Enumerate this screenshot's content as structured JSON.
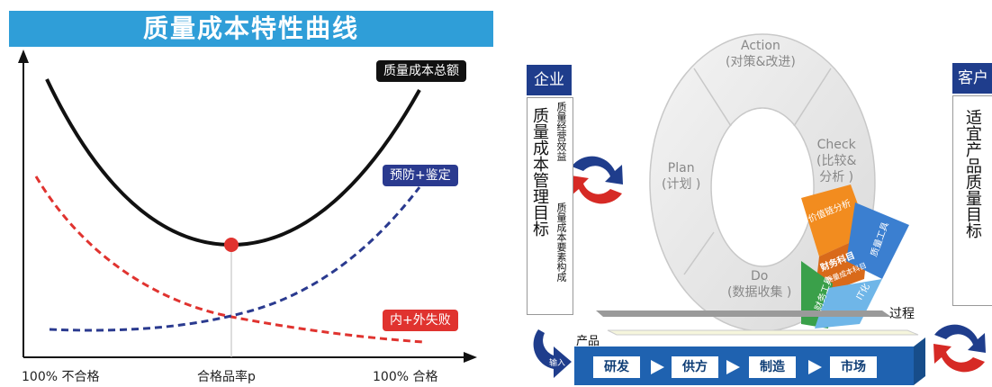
{
  "left": {
    "title": "质量成本特性曲线",
    "legend": {
      "total": "质量成本总额",
      "prevention": "预防+鉴定",
      "failure": "内+外失败"
    },
    "x_labels": {
      "left": "100% 不合格",
      "center": "合格品率p",
      "right": "100% 合格"
    },
    "colors": {
      "total": "#111111",
      "prevention": "#2a3a8f",
      "failure": "#e0332f",
      "title_bg": "#2f9ed8"
    }
  },
  "right": {
    "enterprise": "企业",
    "enterprise_goal": "质量成本管理目标",
    "benefit": "质量经营效益",
    "elements": "质量成本要素构成",
    "customer": "客户",
    "customer_goal": "适宜产品质量目标",
    "pdca": {
      "action": "Action",
      "action_sub": "(对策&改进)",
      "check": "Check",
      "check_sub1": "(比较&",
      "check_sub2": "分析 )",
      "plan": "Plan",
      "plan_sub": "(计划 )",
      "do": "Do",
      "do_sub": "(数据收集 )"
    },
    "tools": {
      "value_chain": "价值链分析",
      "finance_subject": "财务科目",
      "quality_cost_subject": "质量成本科目",
      "finance_tools": "财务工具",
      "quality_tools": "质量工具",
      "it": "IT化"
    },
    "process": "过程",
    "product": "产品",
    "input": "输入",
    "steps": [
      "研发",
      "供方",
      "制造",
      "市场"
    ]
  }
}
